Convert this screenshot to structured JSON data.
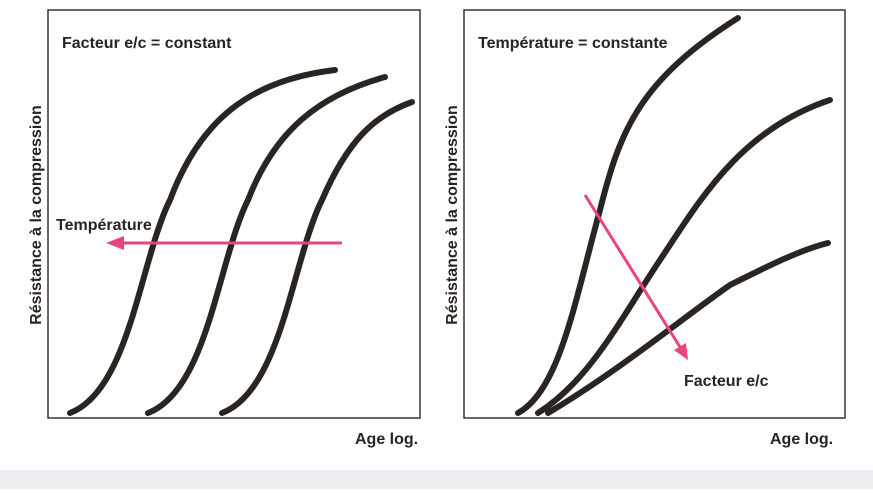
{
  "left_panel": {
    "title": "Facteur e/c = constant",
    "y_label": "Résistance à la compression",
    "x_label": "Age log.",
    "annotation": "Température"
  },
  "right_panel": {
    "title": "Température = constante",
    "y_label": "Résistance à la compression",
    "x_label": "Age log.",
    "annotation": "Facteur e/c"
  }
}
